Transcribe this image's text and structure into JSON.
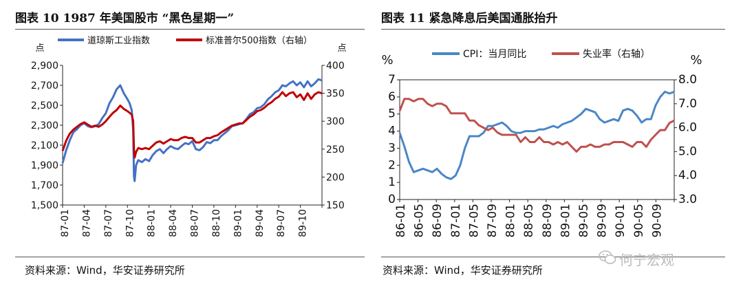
{
  "figures": {
    "left": {
      "title": "图表 10 1987 年美国股市 “黑色星期一”",
      "source": "资料来源：Wind，华安证券研究所"
    },
    "right": {
      "title": "图表 11  紧急降息后美国通胀抬升",
      "source": "资料来源：Wind，华安证券研究所"
    }
  },
  "watermark": {
    "text": "何宁宏观",
    "icon": "wechat-icon"
  },
  "chart_data": [
    {
      "type": "line",
      "title": "图表 10 1987 年美国股市 “黑色星期一”",
      "y_left_unit": "点",
      "y_right_unit": "点",
      "ylim_left": [
        1500,
        2900
      ],
      "ylim_right": [
        150,
        400
      ],
      "yticks_left": [
        "1,500",
        "1,700",
        "1,900",
        "2,100",
        "2,300",
        "2,500",
        "2,700",
        "2,900"
      ],
      "yticks_right": [
        "150",
        "200",
        "250",
        "300",
        "350",
        "400"
      ],
      "x_tick_labels": [
        "87-01",
        "87-04",
        "87-07",
        "87-10",
        "88-01",
        "88-04",
        "88-07",
        "88-10",
        "89-01",
        "89-04",
        "89-07",
        "89-10"
      ],
      "x_range_months": [
        0,
        36
      ],
      "series": [
        {
          "name": "道琼斯工业指数",
          "axis": "left",
          "color": "#4472C4",
          "x": [
            0,
            0.5,
            1,
            1.5,
            2,
            2.5,
            3,
            3.5,
            4,
            4.5,
            5,
            5.5,
            6,
            6.5,
            7,
            7.5,
            8,
            8.5,
            9,
            9.3,
            9.6,
            9.8,
            9.9,
            10.0,
            10.2,
            10.5,
            11,
            11.5,
            12,
            12.5,
            13,
            13.5,
            14,
            14.5,
            15,
            15.5,
            16,
            16.5,
            17,
            17.5,
            18,
            18.5,
            19,
            19.5,
            20,
            20.5,
            21,
            21.5,
            22,
            22.5,
            23,
            23.5,
            24,
            24.5,
            25,
            25.5,
            26,
            26.5,
            27,
            27.5,
            28,
            28.5,
            29,
            29.5,
            30,
            30.5,
            31,
            31.5,
            32,
            32.5,
            33,
            33.5,
            34,
            34.5,
            35,
            35.5,
            36
          ],
          "values": [
            1920,
            2050,
            2150,
            2230,
            2260,
            2300,
            2320,
            2290,
            2280,
            2290,
            2310,
            2370,
            2420,
            2520,
            2580,
            2660,
            2700,
            2620,
            2560,
            2520,
            2450,
            2250,
            1790,
            1740,
            1900,
            1950,
            1930,
            1960,
            1940,
            2000,
            2040,
            2060,
            2020,
            2060,
            2090,
            2070,
            2060,
            2090,
            2120,
            2110,
            2140,
            2060,
            2050,
            2080,
            2130,
            2120,
            2150,
            2150,
            2190,
            2220,
            2250,
            2290,
            2300,
            2310,
            2320,
            2360,
            2410,
            2430,
            2470,
            2480,
            2510,
            2560,
            2590,
            2630,
            2650,
            2700,
            2690,
            2720,
            2740,
            2700,
            2730,
            2680,
            2740,
            2690,
            2720,
            2760,
            2750
          ]
        },
        {
          "name": "标准普尔500指数（右轴）",
          "axis": "right",
          "color": "#C00000",
          "x": [
            0,
            0.5,
            1,
            1.5,
            2,
            2.5,
            3,
            3.5,
            4,
            4.5,
            5,
            5.5,
            6,
            6.5,
            7,
            7.5,
            8,
            8.5,
            9,
            9.3,
            9.6,
            9.8,
            9.9,
            10.0,
            10.2,
            10.5,
            11,
            11.5,
            12,
            12.5,
            13,
            13.5,
            14,
            14.5,
            15,
            15.5,
            16,
            16.5,
            17,
            17.5,
            18,
            18.5,
            19,
            19.5,
            20,
            20.5,
            21,
            21.5,
            22,
            22.5,
            23,
            23.5,
            24,
            24.5,
            25,
            25.5,
            26,
            26.5,
            27,
            27.5,
            28,
            28.5,
            29,
            29.5,
            30,
            30.5,
            31,
            31.5,
            32,
            32.5,
            33,
            33.5,
            34,
            34.5,
            35,
            35.5,
            36
          ],
          "values": [
            247,
            265,
            278,
            285,
            290,
            295,
            298,
            294,
            290,
            292,
            290,
            294,
            300,
            308,
            315,
            320,
            328,
            322,
            318,
            315,
            312,
            300,
            250,
            235,
            245,
            252,
            250,
            252,
            250,
            256,
            262,
            264,
            260,
            264,
            268,
            266,
            266,
            270,
            272,
            270,
            270,
            262,
            262,
            266,
            270,
            270,
            273,
            275,
            280,
            284,
            288,
            292,
            294,
            296,
            296,
            302,
            308,
            312,
            318,
            320,
            324,
            330,
            334,
            340,
            344,
            352,
            345,
            350,
            352,
            343,
            348,
            338,
            350,
            340,
            348,
            352,
            350
          ]
        }
      ]
    },
    {
      "type": "line",
      "title": "图表 11  紧急降息后美国通胀抬升",
      "y_left_unit": "%",
      "y_right_unit": "%",
      "ylim_left": [
        0,
        7
      ],
      "ylim_right": [
        3.0,
        8.0
      ],
      "yticks_left": [
        "0",
        "1",
        "2",
        "3",
        "4",
        "5",
        "6",
        "7"
      ],
      "yticks_right": [
        "3.0",
        "4.0",
        "5.0",
        "6.0",
        "7.0",
        "8.0"
      ],
      "x_tick_labels": [
        "86-01",
        "86-05",
        "86-09",
        "87-01",
        "87-05",
        "87-09",
        "88-01",
        "88-05",
        "88-09",
        "89-01",
        "89-05",
        "89-09",
        "90-01",
        "90-05",
        "90-09"
      ],
      "x_range_months": [
        0,
        59
      ],
      "series": [
        {
          "name": "CPI：当月同比",
          "axis": "left",
          "color": "#4A86C6",
          "x": [
            0,
            1,
            2,
            3,
            4,
            5,
            6,
            7,
            8,
            9,
            10,
            11,
            12,
            13,
            14,
            15,
            16,
            17,
            18,
            19,
            20,
            21,
            22,
            23,
            24,
            25,
            26,
            27,
            28,
            29,
            30,
            31,
            32,
            33,
            34,
            35,
            36,
            37,
            38,
            39,
            40,
            41,
            42,
            43,
            44,
            45,
            46,
            47,
            48,
            49,
            50,
            51,
            52,
            53,
            54,
            55,
            56,
            57,
            58,
            59
          ],
          "values": [
            3.9,
            3.1,
            2.2,
            1.6,
            1.7,
            1.8,
            1.7,
            1.6,
            1.8,
            1.5,
            1.3,
            1.2,
            1.4,
            2.0,
            3.0,
            3.7,
            3.7,
            3.7,
            3.9,
            4.3,
            4.3,
            4.4,
            4.5,
            4.3,
            4.0,
            3.9,
            3.9,
            4.0,
            4.0,
            4.0,
            4.1,
            4.1,
            4.2,
            4.3,
            4.2,
            4.4,
            4.5,
            4.6,
            4.8,
            5.0,
            5.3,
            5.2,
            5.1,
            4.7,
            4.5,
            4.6,
            4.7,
            4.6,
            5.2,
            5.3,
            5.2,
            4.9,
            4.5,
            4.7,
            4.7,
            5.5,
            6.0,
            6.3,
            6.2,
            6.3
          ]
        },
        {
          "name": "失业率（右轴）",
          "axis": "right",
          "color": "#C0504D",
          "x": [
            0,
            1,
            2,
            3,
            4,
            5,
            6,
            7,
            8,
            9,
            10,
            11,
            12,
            13,
            14,
            15,
            16,
            17,
            18,
            19,
            20,
            21,
            22,
            23,
            24,
            25,
            26,
            27,
            28,
            29,
            30,
            31,
            32,
            33,
            34,
            35,
            36,
            37,
            38,
            39,
            40,
            41,
            42,
            43,
            44,
            45,
            46,
            47,
            48,
            49,
            50,
            51,
            52,
            53,
            54,
            55,
            56,
            57,
            58,
            59
          ],
          "values": [
            6.7,
            7.2,
            7.2,
            7.1,
            7.2,
            7.2,
            7.0,
            6.9,
            7.0,
            7.0,
            6.9,
            6.6,
            6.6,
            6.6,
            6.6,
            6.3,
            6.3,
            6.1,
            6.0,
            5.9,
            6.0,
            5.8,
            5.7,
            5.7,
            5.7,
            5.7,
            5.4,
            5.6,
            5.4,
            5.4,
            5.6,
            5.4,
            5.4,
            5.3,
            5.4,
            5.3,
            5.4,
            5.2,
            5.0,
            5.2,
            5.2,
            5.3,
            5.2,
            5.2,
            5.3,
            5.3,
            5.4,
            5.4,
            5.4,
            5.3,
            5.2,
            5.4,
            5.4,
            5.2,
            5.5,
            5.7,
            5.9,
            5.9,
            6.2,
            6.3
          ]
        }
      ]
    }
  ]
}
